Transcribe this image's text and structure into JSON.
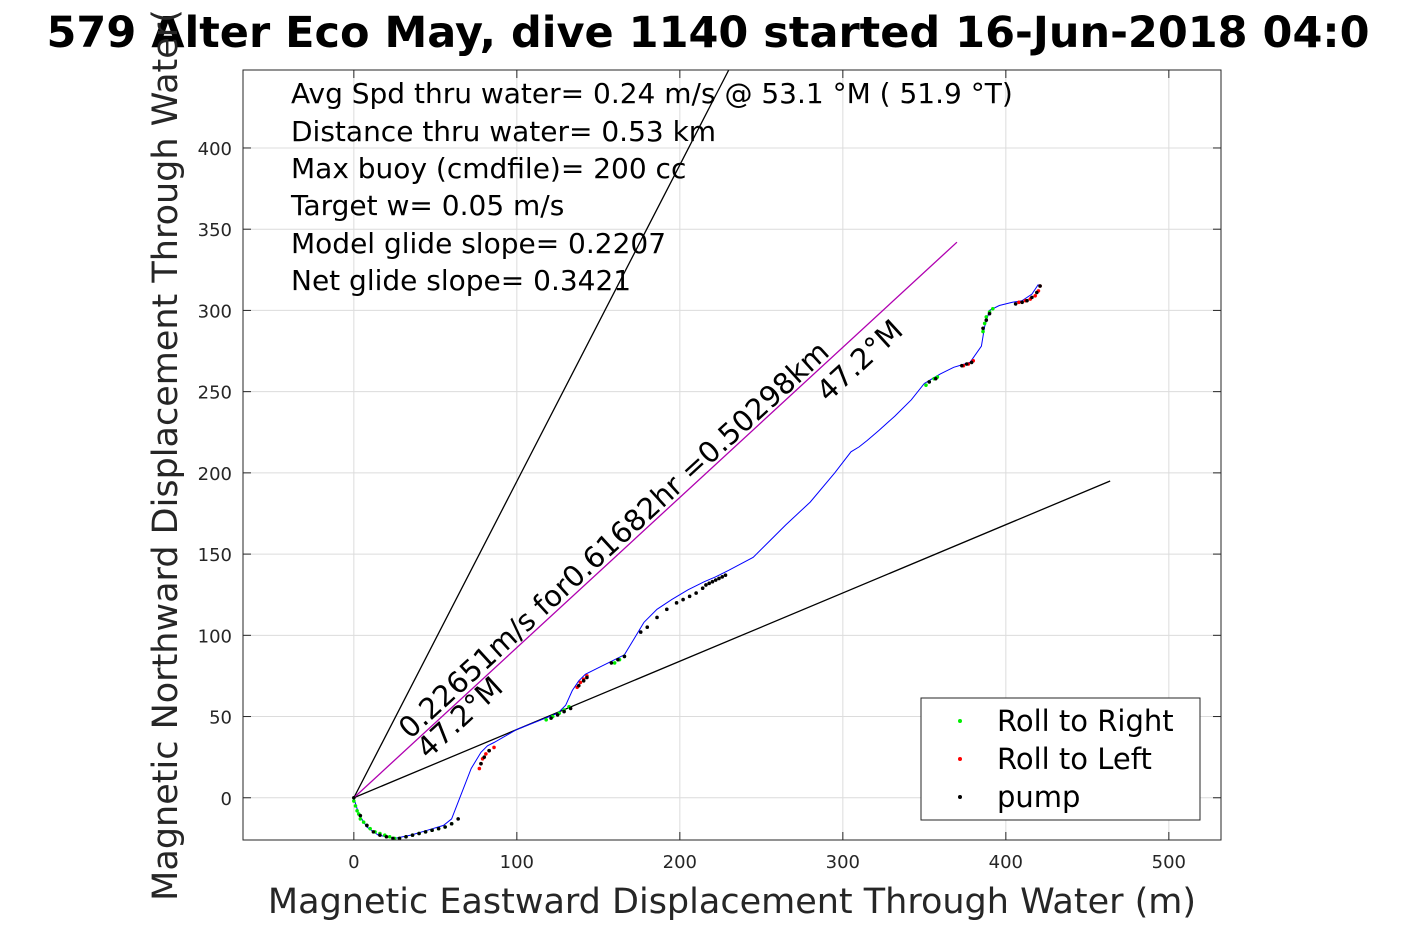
{
  "chart_data": {
    "type": "scatter",
    "title": "579 Alter Eco May, dive 1140 started 16-Jun-2018 04:0",
    "xlabel": "Magnetic Eastward Displacement Through Water (m)",
    "ylabel": "Magnetic Northward Displacement Through Water(",
    "xlim": [
      -68,
      532
    ],
    "ylim": [
      -26,
      448
    ],
    "xticks": [
      0,
      100,
      200,
      300,
      400,
      500
    ],
    "yticks": [
      0,
      50,
      100,
      150,
      200,
      250,
      300,
      350,
      400
    ],
    "grid": true,
    "legend_position": "bottom-right",
    "annotations": [
      "Avg Spd thru water=  0.24 m/s @  53.1 °M ( 51.9 °T)",
      "Distance thru water=  0.53 km",
      "Max buoy (cmdfile)= 200 cc",
      "Target w= 0.05 m/s",
      "Model glide slope= 0.2207",
      "Net glide slope= 0.3421"
    ],
    "rotated_labels": {
      "along_track": "0.22651m/s for0.61682hr =0.50298km",
      "heading_near_origin": "47.2°M",
      "heading_near_end": "47.2°M"
    },
    "lines": {
      "glide_cone_upper": {
        "x": [
          0,
          230
        ],
        "y": [
          0,
          448
        ]
      },
      "glide_cone_lower": {
        "x": [
          0,
          464
        ],
        "y": [
          0,
          195
        ]
      },
      "heading_line": {
        "x": [
          0,
          370
        ],
        "y": [
          0,
          342
        ],
        "color": "#b000b0"
      }
    },
    "track": {
      "color": "#0000ff",
      "x": [
        0,
        3,
        8,
        15,
        25,
        35,
        45,
        55,
        60,
        65,
        72,
        78,
        82,
        86,
        100,
        115,
        125,
        130,
        134,
        138,
        142,
        150,
        158,
        166,
        172,
        178,
        186,
        195,
        205,
        215,
        222,
        230,
        245,
        255,
        265,
        280,
        295,
        305,
        310,
        315,
        322,
        332,
        342,
        350,
        355,
        360,
        368,
        378,
        385,
        387,
        390,
        396,
        404,
        410,
        416,
        420
      ],
      "y": [
        0,
        -10,
        -18,
        -23,
        -25,
        -23,
        -20,
        -17,
        -13,
        0,
        18,
        28,
        32,
        34,
        42,
        48,
        52,
        57,
        66,
        72,
        76,
        80,
        84,
        88,
        98,
        108,
        116,
        122,
        128,
        133,
        136,
        140,
        148,
        158,
        168,
        182,
        200,
        213,
        216,
        220,
        226,
        235,
        245,
        255,
        258,
        261,
        265,
        268,
        278,
        290,
        300,
        303,
        305,
        306,
        310,
        316
      ]
    },
    "series": [
      {
        "name": "Roll to Right",
        "color": "#00ee00",
        "x": [
          0,
          1,
          2,
          3,
          4,
          6,
          8,
          10,
          13,
          16,
          19,
          22,
          25,
          28,
          32,
          36,
          40,
          44,
          48,
          52,
          56,
          60,
          118,
          122,
          126,
          129,
          132,
          160,
          163,
          166,
          351,
          353,
          356,
          358,
          386,
          387,
          388,
          390,
          392
        ],
        "y": [
          -2,
          -5,
          -8,
          -10,
          -13,
          -15,
          -17,
          -19,
          -21,
          -22,
          -23,
          -24,
          -25,
          -25,
          -24,
          -23,
          -22,
          -21,
          -20,
          -19,
          -18,
          -16,
          48,
          50,
          52,
          54,
          56,
          83,
          85,
          87,
          254,
          256,
          258,
          259,
          287,
          292,
          296,
          299,
          301
        ]
      },
      {
        "name": "Roll to Left",
        "color": "#ff0000",
        "x": [
          77,
          78,
          79,
          81,
          83,
          86,
          137,
          139,
          141,
          143,
          374,
          377,
          380,
          408,
          412,
          415,
          418,
          420,
          421
        ],
        "y": [
          18,
          21,
          24,
          27,
          29,
          31,
          68,
          71,
          73,
          75,
          266,
          267,
          269,
          305,
          306,
          307,
          309,
          312,
          315
        ]
      },
      {
        "name": "pump",
        "color": "#000000",
        "x": [
          0,
          4,
          8,
          12,
          16,
          20,
          24,
          28,
          32,
          36,
          40,
          44,
          48,
          52,
          56,
          60,
          64,
          78,
          80,
          83,
          121,
          125,
          129,
          133,
          138,
          141,
          143,
          158,
          162,
          166,
          176,
          180,
          186,
          192,
          198,
          202,
          206,
          210,
          214,
          216,
          218,
          220,
          222,
          224,
          226,
          228,
          353,
          357,
          373,
          376,
          379,
          386,
          388,
          390,
          406,
          410,
          413,
          416,
          419,
          421
        ],
        "y": [
          0,
          -11,
          -17,
          -21,
          -23,
          -24,
          -25,
          -25,
          -24,
          -23,
          -22,
          -21,
          -20,
          -19,
          -18,
          -16,
          -13,
          21,
          25,
          29,
          49,
          51,
          53,
          55,
          69,
          72,
          74,
          83,
          85,
          87,
          102,
          105,
          111,
          116,
          120,
          122,
          124,
          126,
          129,
          131,
          132,
          133,
          134,
          135,
          136,
          137,
          256,
          258,
          266,
          267,
          268,
          289,
          294,
          298,
          304,
          305,
          306,
          308,
          311,
          315
        ]
      }
    ]
  }
}
